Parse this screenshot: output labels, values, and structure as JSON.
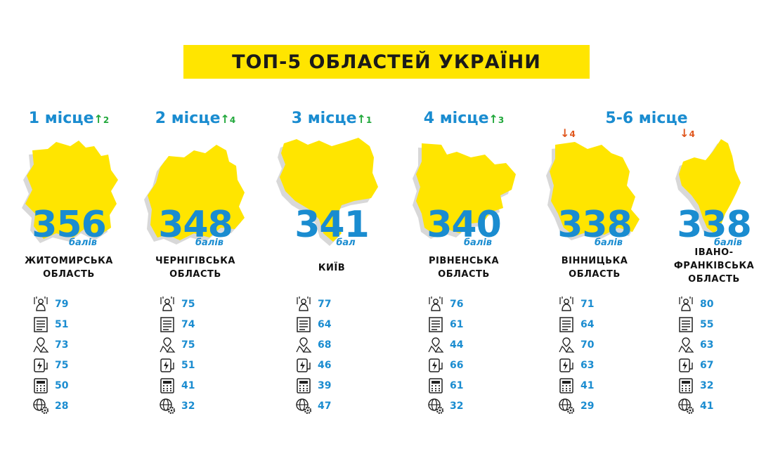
{
  "title": "ТОП-5 ОБЛАСТЕЙ УКРАЇНИ",
  "colors": {
    "accent_yellow": "#ffe500",
    "score_blue": "#1a8cd0",
    "up_green": "#22a83c",
    "down_orange": "#e0571e",
    "map_shadow": "#d8d8d8"
  },
  "metric_icons": [
    "people-hands-icon",
    "document-icon",
    "map-pin-icon",
    "energy-icon",
    "calculator-icon",
    "globe-gear-icon"
  ],
  "shared_rank_label": "5-6 місце",
  "chart_data": {
    "type": "table",
    "title": "ТОП-5 ОБЛАСТЕЙ УКРАЇНИ",
    "regions": [
      {
        "rank": "1 місце",
        "change": {
          "direction": "up",
          "arrow": "↑",
          "value": "2"
        },
        "score": "356",
        "unit": "балів",
        "name_lines": [
          "ЖИТОМИРСЬКА",
          "ОБЛАСТЬ"
        ],
        "metrics": [
          79,
          51,
          73,
          75,
          50,
          28
        ]
      },
      {
        "rank": "2 місце",
        "change": {
          "direction": "up",
          "arrow": "↑",
          "value": "4"
        },
        "score": "348",
        "unit": "балів",
        "name_lines": [
          "ЧЕРНІГІВСЬКА",
          "ОБЛАСТЬ"
        ],
        "metrics": [
          75,
          74,
          75,
          51,
          41,
          32
        ]
      },
      {
        "rank": "3 місце",
        "change": {
          "direction": "up",
          "arrow": "↑",
          "value": "1"
        },
        "score": "341",
        "unit": "бал",
        "name_lines": [
          "КИЇВ"
        ],
        "metrics": [
          77,
          64,
          68,
          46,
          39,
          47
        ]
      },
      {
        "rank": "4 місце",
        "change": {
          "direction": "up",
          "arrow": "↑",
          "value": "3"
        },
        "score": "340",
        "unit": "балів",
        "name_lines": [
          "РІВНЕНСЬКА",
          "ОБЛАСТЬ"
        ],
        "metrics": [
          76,
          61,
          44,
          66,
          61,
          32
        ]
      },
      {
        "rank": "5-6 місце",
        "change": {
          "direction": "down",
          "arrow": "↓",
          "value": "4"
        },
        "score": "338",
        "unit": "балів",
        "name_lines": [
          "ВІННИЦЬКА",
          "ОБЛАСТЬ"
        ],
        "metrics": [
          71,
          64,
          70,
          63,
          41,
          29
        ]
      },
      {
        "rank": "5-6 місце",
        "change": {
          "direction": "down",
          "arrow": "↓",
          "value": "4"
        },
        "score": "338",
        "unit": "балів",
        "name_lines": [
          "ІВАНО-",
          "ФРАНКІВСЬКА",
          "ОБЛАСТЬ"
        ],
        "metrics": [
          80,
          55,
          63,
          67,
          32,
          41
        ]
      }
    ]
  }
}
